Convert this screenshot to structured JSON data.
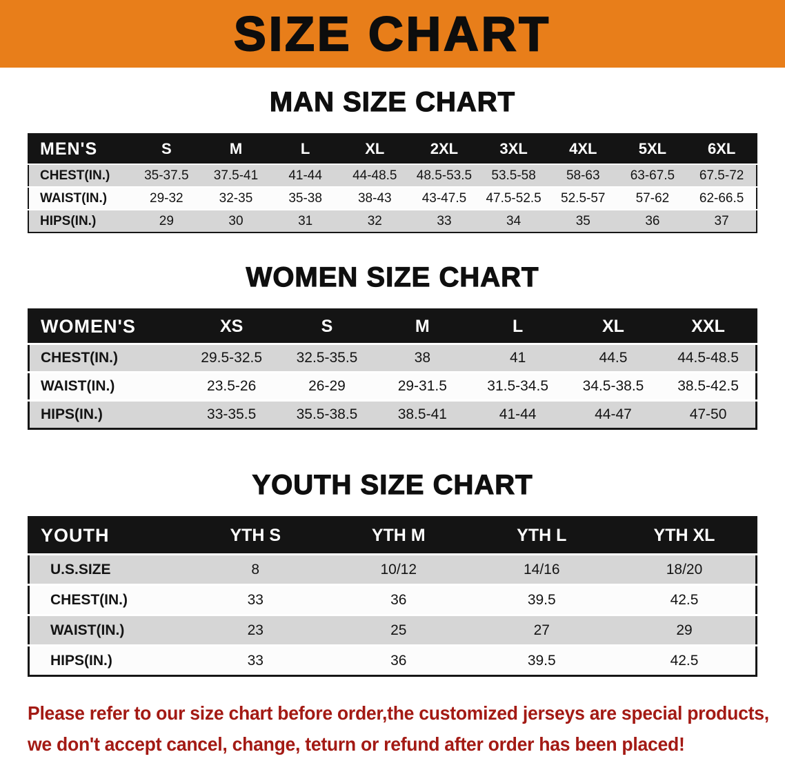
{
  "banner": {
    "title": "SIZE CHART",
    "bg_color": "#E87E1A"
  },
  "chart_data": [
    {
      "type": "table",
      "title": "MAN SIZE CHART",
      "header": [
        "MEN'S",
        "S",
        "M",
        "L",
        "XL",
        "2XL",
        "3XL",
        "4XL",
        "5XL",
        "6XL"
      ],
      "rows": [
        [
          "CHEST(IN.)",
          "35-37.5",
          "37.5-41",
          "41-44",
          "44-48.5",
          "48.5-53.5",
          "53.5-58",
          "58-63",
          "63-67.5",
          "67.5-72"
        ],
        [
          "WAIST(IN.)",
          "29-32",
          "32-35",
          "35-38",
          "38-43",
          "43-47.5",
          "47.5-52.5",
          "52.5-57",
          "57-62",
          "62-66.5"
        ],
        [
          "HIPS(IN.)",
          "29",
          "30",
          "31",
          "32",
          "33",
          "34",
          "35",
          "36",
          "37"
        ]
      ]
    },
    {
      "type": "table",
      "title": "WOMEN SIZE CHART",
      "header": [
        "WOMEN'S",
        "XS",
        "S",
        "M",
        "L",
        "XL",
        "XXL"
      ],
      "rows": [
        [
          "CHEST(IN.)",
          "29.5-32.5",
          "32.5-35.5",
          "38",
          "41",
          "44.5",
          "44.5-48.5"
        ],
        [
          "WAIST(IN.)",
          "23.5-26",
          "26-29",
          "29-31.5",
          "31.5-34.5",
          "34.5-38.5",
          "38.5-42.5"
        ],
        [
          "HIPS(IN.)",
          "33-35.5",
          "35.5-38.5",
          "38.5-41",
          "41-44",
          "44-47",
          "47-50"
        ]
      ]
    },
    {
      "type": "table",
      "title": "YOUTH SIZE CHART",
      "header": [
        "YOUTH",
        "YTH S",
        "YTH M",
        "YTH L",
        "YTH XL"
      ],
      "rows": [
        [
          "U.S.SIZE",
          "8",
          "10/12",
          "14/16",
          "18/20"
        ],
        [
          "CHEST(IN.)",
          "33",
          "36",
          "39.5",
          "42.5"
        ],
        [
          "WAIST(IN.)",
          "23",
          "25",
          "27",
          "29"
        ],
        [
          "HIPS(IN.)",
          "33",
          "36",
          "39.5",
          "42.5"
        ]
      ]
    }
  ],
  "footer": {
    "color": "#A31A14",
    "lines": [
      "Please refer to our size chart before order,the customized jerseys are special products,",
      "we don't accept cancel, change, teturn or refund after order has been placed!"
    ]
  }
}
